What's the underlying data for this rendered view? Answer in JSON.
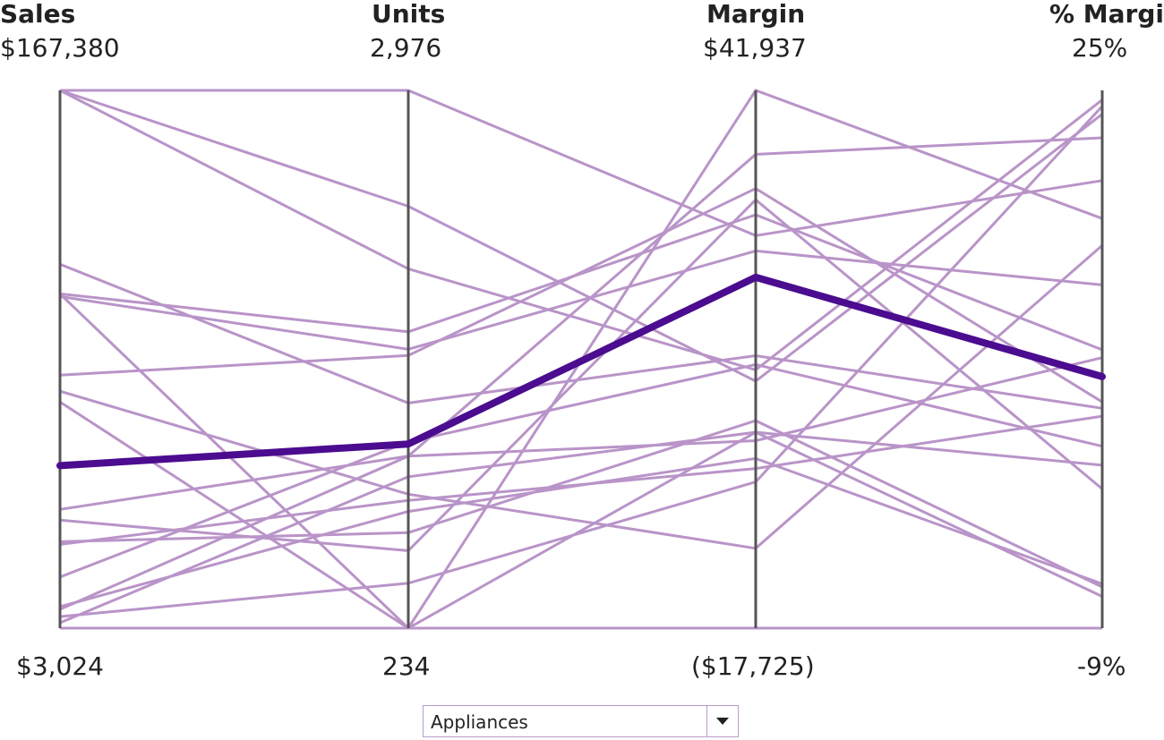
{
  "chart_data": {
    "type": "parallel-coordinates",
    "axes": [
      {
        "name": "Sales",
        "max_label": "$167,380",
        "min_label": "$3,024",
        "min": 3024,
        "max": 167380
      },
      {
        "name": "Units",
        "max_label": "2,976",
        "min_label": "234",
        "min": 234,
        "max": 2976
      },
      {
        "name": "Margin",
        "max_label": "$41,937",
        "min_label": "($17,725)",
        "min": -17725,
        "max": 41937
      },
      {
        "name": "% Margin",
        "max_label": "25%",
        "min_label": "-9%",
        "min": -9,
        "max": 25
      }
    ],
    "series": [
      {
        "values": [
          3024,
          234,
          41937,
          16.9
        ]
      },
      {
        "values": [
          167380,
          2976,
          25828,
          19.3
        ]
      },
      {
        "values": [
          167380,
          2066,
          10922,
          24.4
        ]
      },
      {
        "values": [
          167380,
          2385,
          9669,
          23.5
        ]
      },
      {
        "values": [
          105190,
          234,
          4007,
          1.3
        ]
      },
      {
        "values": [
          114233,
          1382,
          12503,
          4.9
        ]
      },
      {
        "values": [
          104369,
          1656,
          24129,
          12.7
        ]
      },
      {
        "values": [
          105190,
          1745,
          28127,
          8.6
        ]
      },
      {
        "values": [
          75442,
          917,
          -8870,
          15.2
        ]
      },
      {
        "values": [
          80369,
          1624,
          31050,
          5.3
        ]
      },
      {
        "values": [
          72156,
          234,
          -17725,
          -9
        ]
      },
      {
        "values": [
          39305,
          1111,
          3068,
          8.1
        ]
      },
      {
        "values": [
          36020,
          629,
          29808,
          -0.2
        ]
      },
      {
        "values": [
          29453,
          721,
          5298,
          -6.4
        ]
      },
      {
        "values": [
          4667,
          1006,
          4007,
          -7
        ]
      },
      {
        "values": [
          18632,
          1184,
          11520,
          2.5
        ]
      },
      {
        "values": [
          28632,
          885,
          -11,
          4.4
        ]
      },
      {
        "values": [
          8779,
          1111,
          34837,
          22.0
        ]
      },
      {
        "values": [
          6561,
          463,
          -1500,
          24.0
        ]
      },
      {
        "values": [
          9600,
          829,
          1100,
          -6.2
        ]
      }
    ],
    "highlighted": {
      "name": "Appliances",
      "values": [
        52680,
        1173,
        21200,
        6.9
      ]
    },
    "colors": {
      "axis": "#555555",
      "line": "#b994c8",
      "highlight": "#4b0c8f"
    }
  },
  "filter": {
    "selected": "Appliances"
  }
}
